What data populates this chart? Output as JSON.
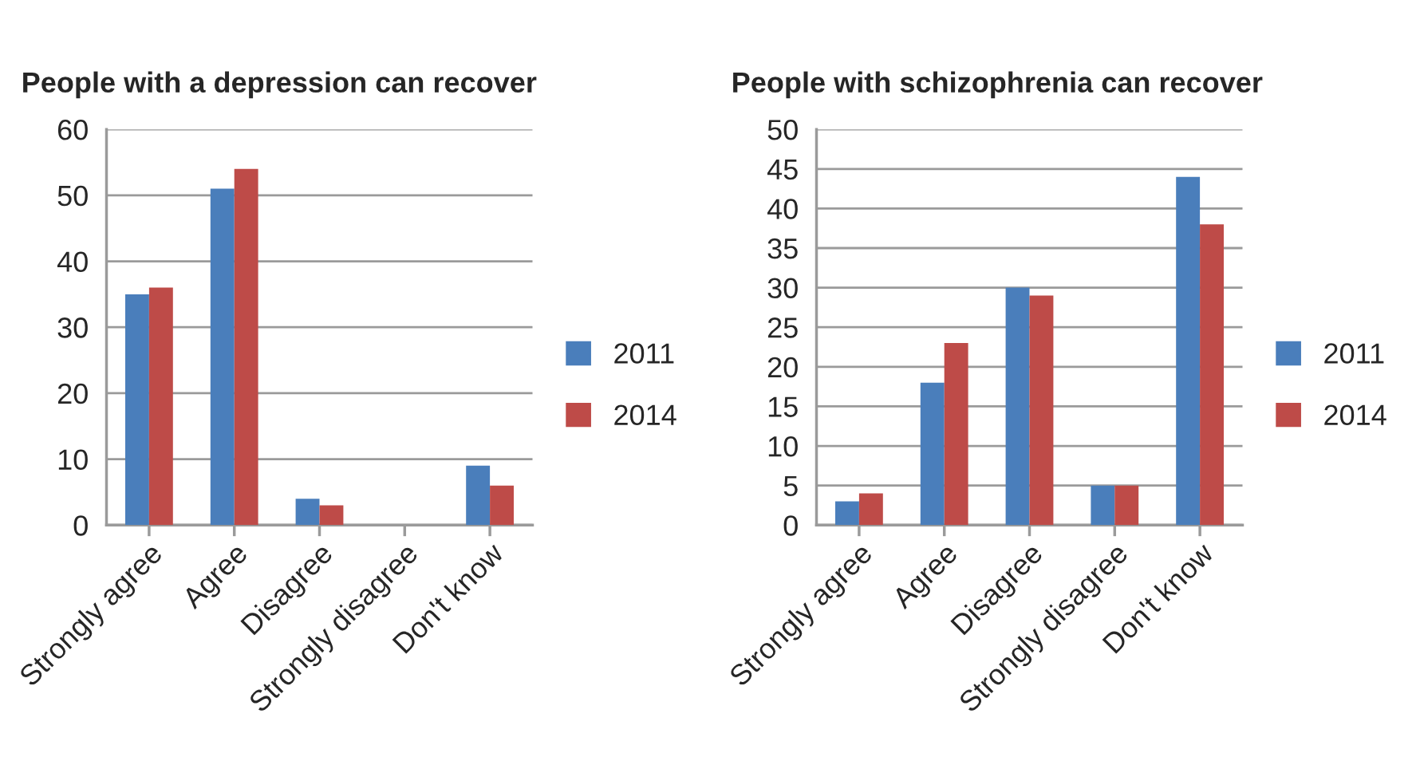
{
  "chart_data": [
    {
      "type": "bar",
      "title": "People with a depression can recover",
      "categories": [
        "Strongly agree",
        "Agree",
        "Disagree",
        "Strongly disagree",
        "Don't know"
      ],
      "series": [
        {
          "name": "2011",
          "color": "#4a7ebb",
          "values": [
            35,
            51,
            4,
            null,
            9
          ]
        },
        {
          "name": "2014",
          "color": "#be4b48",
          "values": [
            36,
            54,
            3,
            null,
            6
          ]
        }
      ],
      "ylim": [
        0,
        60
      ],
      "yticks": [
        0,
        10,
        20,
        30,
        40,
        50,
        60
      ],
      "grid": "y",
      "legend": "right"
    },
    {
      "type": "bar",
      "title": "People with schizophrenia can recover",
      "categories": [
        "Strongly agree",
        "Agree",
        "Disagree",
        "Strongly disagree",
        "Don't know"
      ],
      "series": [
        {
          "name": "2011",
          "color": "#4a7ebb",
          "values": [
            3,
            18,
            30,
            5,
            44
          ]
        },
        {
          "name": "2014",
          "color": "#be4b48",
          "values": [
            4,
            23,
            29,
            5,
            38
          ]
        }
      ],
      "ylim": [
        0,
        50
      ],
      "yticks": [
        0,
        5,
        10,
        15,
        20,
        25,
        30,
        35,
        40,
        45,
        50
      ],
      "grid": "y",
      "legend": "right"
    }
  ]
}
